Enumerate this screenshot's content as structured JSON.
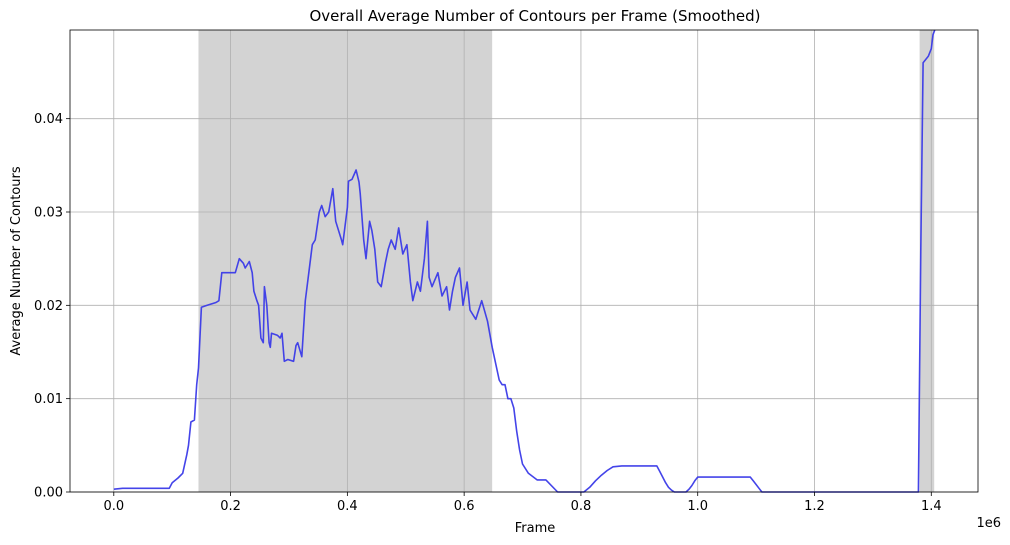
{
  "chart_data": {
    "type": "line",
    "title": "Overall Average Number of Contours per Frame (Smoothed)",
    "xlabel": "Frame",
    "ylabel": "Average Number of Contours",
    "x_offset_label": "1e6",
    "xlim": [
      -75000,
      1480000
    ],
    "ylim": [
      0,
      0.0495
    ],
    "x_ticks": [
      0,
      200000,
      400000,
      600000,
      800000,
      1000000,
      1200000,
      1400000
    ],
    "x_tick_labels": [
      "0.0",
      "0.2",
      "0.4",
      "0.6",
      "0.8",
      "1.0",
      "1.2",
      "1.4"
    ],
    "y_ticks": [
      0,
      0.01,
      0.02,
      0.03,
      0.04
    ],
    "y_tick_labels": [
      "0.00",
      "0.01",
      "0.02",
      "0.03",
      "0.04"
    ],
    "grid": true,
    "line_color": "#3a3ae8",
    "shade_color": "#d3d3d3",
    "shaded_regions": [
      [
        145000,
        648000
      ],
      [
        1380000,
        1405000
      ]
    ],
    "series": [
      {
        "x": [
          0,
          15000,
          95000,
          100000,
          110000,
          118000,
          125000,
          128000,
          132000,
          138000,
          142000,
          145000,
          150000,
          160000,
          175000,
          180000,
          185000,
          205000,
          208000,
          215000,
          222000,
          225000,
          232000,
          237000,
          240000,
          245000,
          248000,
          252000,
          256000,
          258000,
          262000,
          266000,
          268000,
          270000,
          280000,
          285000,
          288000,
          292000,
          298000,
          308000,
          312000,
          315000,
          322000,
          328000,
          335000,
          340000,
          345000,
          352000,
          356000,
          362000,
          368000,
          375000,
          380000,
          390000,
          392000,
          400000,
          402000,
          408000,
          415000,
          420000,
          422000,
          428000,
          432000,
          438000,
          442000,
          447000,
          452000,
          458000,
          465000,
          470000,
          475000,
          482000,
          488000,
          495000,
          502000,
          508000,
          512000,
          520000,
          525000,
          532000,
          537000,
          540000,
          545000,
          555000,
          562000,
          570000,
          575000,
          580000,
          585000,
          592000,
          598000,
          605000,
          610000,
          615000,
          620000,
          630000,
          640000,
          648000,
          660000,
          665000,
          670000,
          675000,
          680000,
          685000,
          690000,
          695000,
          700000,
          710000,
          725000,
          740000,
          760000,
          790000,
          805000,
          815000,
          825000,
          835000,
          845000,
          855000,
          870000,
          900000,
          930000,
          935000,
          940000,
          945000,
          950000,
          955000,
          960000,
          968000,
          980000,
          985000,
          990000,
          995000,
          1000000,
          1020000,
          1050000,
          1090000,
          1095000,
          1100000,
          1105000,
          1110000,
          1200000,
          1300000,
          1378000,
          1382000,
          1386000,
          1390000,
          1395000,
          1400000,
          1403000,
          1406000
        ],
        "y": [
          0.0003,
          0.0004,
          0.0004,
          0.001,
          0.0015,
          0.002,
          0.004,
          0.005,
          0.0075,
          0.0077,
          0.0115,
          0.0133,
          0.0198,
          0.02,
          0.0203,
          0.0205,
          0.0235,
          0.0235,
          0.0235,
          0.025,
          0.0245,
          0.024,
          0.0247,
          0.0235,
          0.0215,
          0.0205,
          0.02,
          0.0165,
          0.016,
          0.022,
          0.02,
          0.016,
          0.0155,
          0.017,
          0.0168,
          0.0165,
          0.017,
          0.014,
          0.0142,
          0.014,
          0.0157,
          0.016,
          0.0145,
          0.0205,
          0.024,
          0.0265,
          0.027,
          0.03,
          0.0307,
          0.0295,
          0.03,
          0.0325,
          0.029,
          0.027,
          0.0265,
          0.0305,
          0.0333,
          0.0335,
          0.0345,
          0.0332,
          0.032,
          0.027,
          0.025,
          0.029,
          0.028,
          0.026,
          0.0225,
          0.022,
          0.0245,
          0.026,
          0.027,
          0.026,
          0.0283,
          0.0255,
          0.0265,
          0.0225,
          0.0205,
          0.0225,
          0.0215,
          0.025,
          0.029,
          0.023,
          0.022,
          0.0235,
          0.021,
          0.022,
          0.0195,
          0.0215,
          0.023,
          0.024,
          0.02,
          0.0225,
          0.0195,
          0.019,
          0.0185,
          0.0205,
          0.0183,
          0.0155,
          0.012,
          0.0115,
          0.0115,
          0.01,
          0.01,
          0.009,
          0.0065,
          0.0045,
          0.003,
          0.002,
          0.0013,
          0.0013,
          0.0,
          0.0,
          0.0,
          0.0005,
          0.0012,
          0.0018,
          0.0023,
          0.0027,
          0.0028,
          0.0028,
          0.0028,
          0.0022,
          0.0016,
          0.001,
          0.0005,
          0.0002,
          0.0,
          0.0,
          0.0,
          0.0003,
          0.0007,
          0.0012,
          0.0016,
          0.0016,
          0.0016,
          0.0016,
          0.0012,
          0.0008,
          0.0004,
          0.0,
          0.0,
          0.0,
          0.0,
          0.026,
          0.046,
          0.0463,
          0.0467,
          0.0475,
          0.049,
          0.0498
        ]
      }
    ]
  }
}
